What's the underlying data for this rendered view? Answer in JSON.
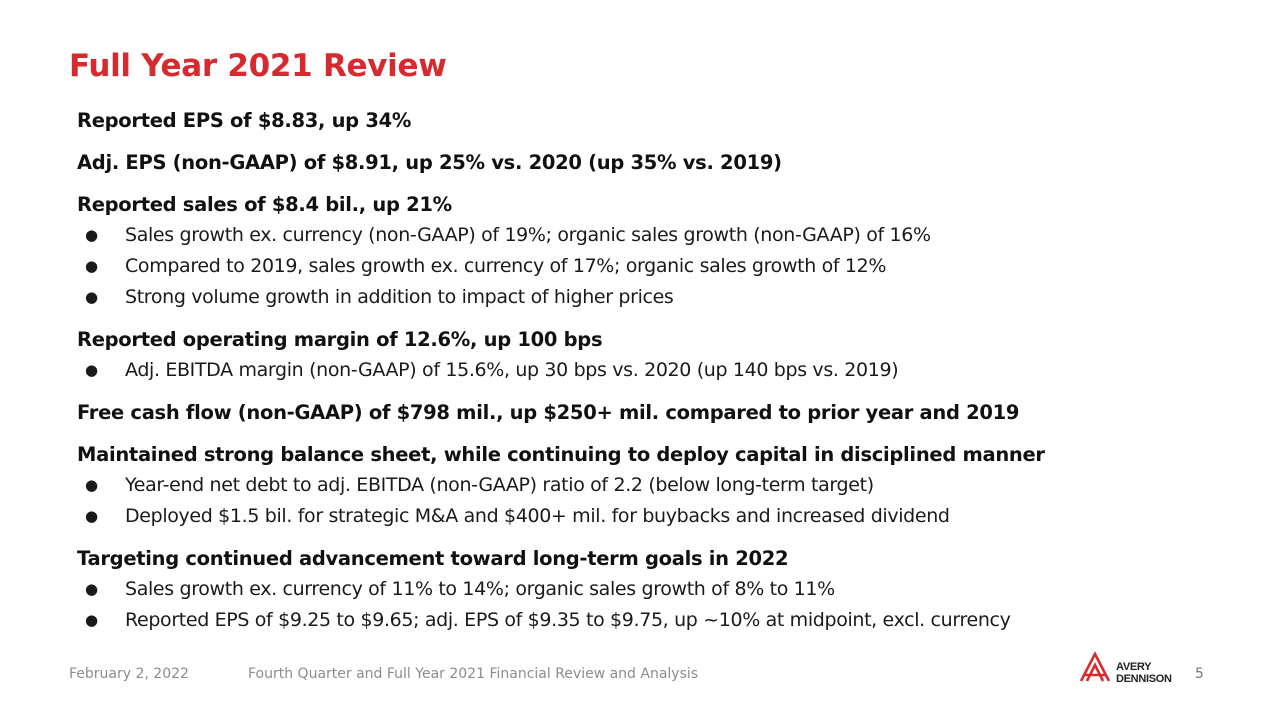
{
  "title": "Full Year 2021 Review",
  "sections": [
    {
      "heading": "Reported EPS of $8.83, up 34%",
      "bullets": []
    },
    {
      "heading": "Adj. EPS (non-GAAP) of $8.91, up 25% vs. 2020 (up 35% vs. 2019)",
      "bullets": []
    },
    {
      "heading": "Reported sales of $8.4 bil., up 21%",
      "bullets": [
        "Sales growth ex. currency (non-GAAP) of 19%; organic sales growth (non-GAAP) of 16%",
        "Compared to 2019, sales growth ex. currency of 17%; organic sales growth of 12%",
        "Strong volume growth in addition to impact of higher prices"
      ]
    },
    {
      "heading": "Reported operating margin of 12.6%, up 100 bps",
      "bullets": [
        "Adj. EBITDA margin (non-GAAP) of 15.6%, up 30 bps vs. 2020 (up 140 bps vs. 2019)"
      ]
    },
    {
      "heading": "Free cash flow (non-GAAP) of $798 mil., up $250+ mil. compared to prior year and 2019",
      "bullets": []
    },
    {
      "heading": "Maintained strong balance sheet, while continuing to deploy capital in disciplined manner",
      "bullets": [
        "Year-end net debt to adj. EBITDA (non-GAAP) ratio of 2.2 (below long-term target)",
        "Deployed $1.5 bil. for strategic M&A and $400+ mil. for buybacks and increased dividend"
      ]
    },
    {
      "heading": "Targeting continued advancement toward long-term goals in 2022",
      "bullets": [
        "Sales growth ex. currency of 11% to 14%; organic sales growth of 8% to 11%",
        "Reported EPS of $9.25 to $9.65; adj. EPS of $9.35 to $9.75, up ~10% at midpoint, excl. currency"
      ]
    }
  ],
  "footer": {
    "date": "February 2, 2022",
    "description": "Fourth Quarter and Full Year 2021 Financial Review and Analysis",
    "page_number": "5"
  },
  "logo": {
    "line1": "AVERY",
    "line2": "DENNISON",
    "icon": "avery-dennison-logo-icon",
    "color": "#d62a2e"
  },
  "colors": {
    "title": "#d62a2e",
    "text": "#111111",
    "footer": "#8c8c8c"
  }
}
